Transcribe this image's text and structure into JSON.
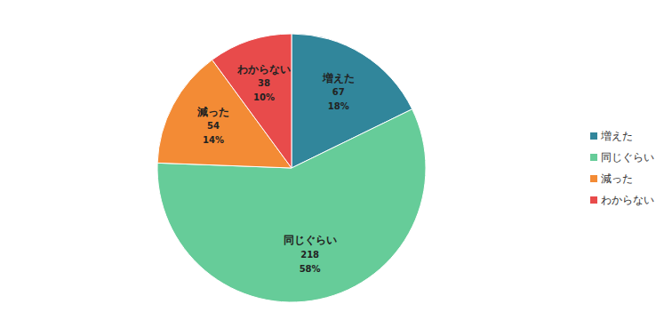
{
  "chart_data": {
    "type": "pie",
    "categories": [
      "増えた",
      "同じぐらい",
      "減った",
      "わからない"
    ],
    "values": [
      67,
      218,
      54,
      38
    ],
    "percent_labels": [
      "18%",
      "58%",
      "14%",
      "10%"
    ],
    "colors": [
      "#31869b",
      "#66cc99",
      "#f38b35",
      "#e84b4b"
    ],
    "data_labels": true,
    "legend": "right"
  }
}
